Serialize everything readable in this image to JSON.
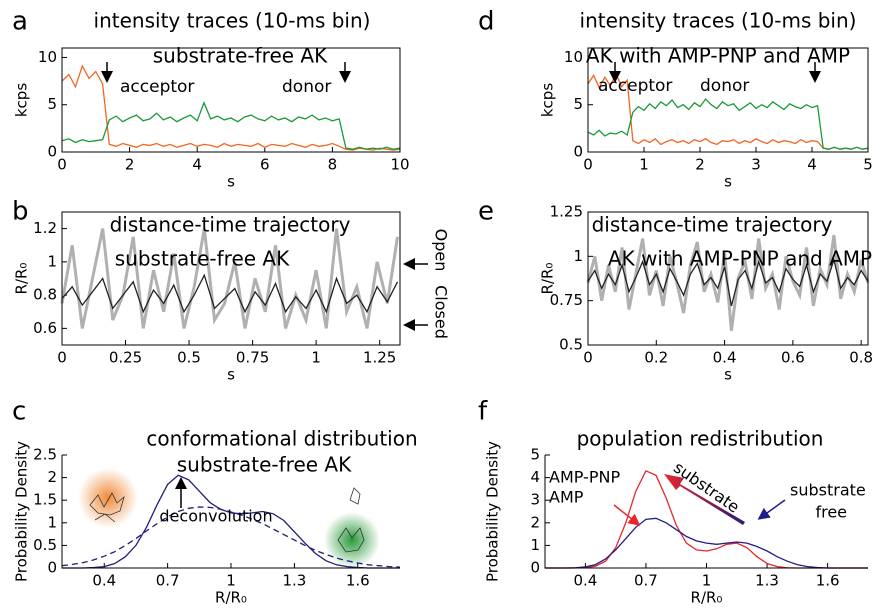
{
  "chart_data": [
    {
      "type": "line",
      "panel_label": "a",
      "title": "intensity traces (10-ms bin)",
      "subtitle": "substrate-free AK",
      "xlabel": "s",
      "ylabel": "kcps",
      "box": true,
      "xlim": [
        0,
        10
      ],
      "ylim": [
        0,
        11
      ],
      "xticks": [
        0,
        2,
        4,
        6,
        8,
        10
      ],
      "yticks": [
        0,
        5,
        10
      ],
      "x": [
        0,
        0.2,
        0.4,
        0.6,
        0.8,
        1,
        1.2,
        1.4,
        1.6,
        1.8,
        2,
        2.2,
        2.4,
        2.6,
        2.8,
        3,
        3.2,
        3.4,
        3.6,
        3.8,
        4,
        4.2,
        4.4,
        4.6,
        4.8,
        5,
        5.2,
        5.4,
        5.6,
        5.8,
        6,
        6.2,
        6.4,
        6.6,
        6.8,
        7,
        7.2,
        7.4,
        7.6,
        7.8,
        8,
        8.2,
        8.4,
        8.6,
        8.8,
        9,
        9.2,
        9.4,
        9.6,
        9.8,
        10
      ],
      "series": [
        {
          "name": "acceptor",
          "color": "#f26522",
          "values": [
            7.5,
            8.2,
            6.9,
            9.1,
            7.8,
            8.5,
            7.2,
            0.8,
            0.6,
            0.9,
            0.7,
            0.5,
            0.8,
            0.7,
            0.9,
            0.6,
            0.8,
            0.5,
            0.7,
            0.9,
            0.6,
            0.8,
            0.7,
            0.5,
            0.9,
            0.6,
            0.8,
            0.7,
            0.6,
            0.9,
            0.5,
            0.8,
            0.7,
            0.6,
            0.9,
            0.7,
            0.5,
            0.8,
            0.6,
            0.7,
            0.9,
            0.6,
            0.3,
            0.2,
            0.4,
            0.3,
            0.2,
            0.4,
            0.3,
            0.2,
            0.3
          ]
        },
        {
          "name": "donor",
          "color": "#1a9a3a",
          "values": [
            1.2,
            1.4,
            1.0,
            1.3,
            1.1,
            1.2,
            1.3,
            3.4,
            3.8,
            3.2,
            3.6,
            3.9,
            3.3,
            3.5,
            4.1,
            3.4,
            3.7,
            3.2,
            3.6,
            3.9,
            3.3,
            5.2,
            3.5,
            3.8,
            3.4,
            3.6,
            3.2,
            3.7,
            3.9,
            3.5,
            3.3,
            3.8,
            3.4,
            3.6,
            3.2,
            3.7,
            3.5,
            3.9,
            3.4,
            3.6,
            3.3,
            3.5,
            0.4,
            0.3,
            0.5,
            0.3,
            0.4,
            0.3,
            0.5,
            0.3,
            0.4
          ]
        }
      ]
    },
    {
      "type": "line",
      "panel_label": "b",
      "title": "distance-time trajectory",
      "subtitle": "substrate-free AK",
      "xlabel": "s",
      "ylabel": "R/R₀",
      "box": true,
      "xlim": [
        0,
        1.33
      ],
      "ylim": [
        0.5,
        1.3
      ],
      "xticks": [
        0,
        0.25,
        0.5,
        0.75,
        1,
        1.25
      ],
      "yticks": [
        0.6,
        0.8,
        1,
        1.2
      ],
      "x": [
        0,
        0.04,
        0.08,
        0.12,
        0.16,
        0.2,
        0.24,
        0.28,
        0.32,
        0.36,
        0.4,
        0.44,
        0.48,
        0.52,
        0.56,
        0.6,
        0.64,
        0.68,
        0.72,
        0.76,
        0.8,
        0.84,
        0.88,
        0.92,
        0.96,
        1,
        1.04,
        1.08,
        1.12,
        1.16,
        1.2,
        1.24,
        1.28,
        1.32
      ],
      "series": [
        {
          "color": "#b0b0b0",
          "values": [
            0.75,
            1.1,
            0.6,
            0.9,
            1.2,
            0.65,
            0.8,
            1.15,
            0.6,
            0.95,
            0.7,
            1.05,
            0.6,
            0.85,
            1.2,
            0.65,
            0.75,
            1.0,
            0.6,
            0.9,
            0.7,
            1.1,
            0.6,
            0.8,
            0.65,
            0.95,
            0.6,
            1.2,
            0.7,
            0.85,
            0.6,
            1.0,
            0.75,
            1.15
          ]
        },
        {
          "color": "#222222",
          "values": [
            0.78,
            0.85,
            0.74,
            0.82,
            0.9,
            0.72,
            0.8,
            0.88,
            0.7,
            0.83,
            0.75,
            0.86,
            0.7,
            0.8,
            0.92,
            0.72,
            0.78,
            0.84,
            0.7,
            0.82,
            0.74,
            0.87,
            0.7,
            0.79,
            0.72,
            0.83,
            0.7,
            0.9,
            0.75,
            0.8,
            0.7,
            0.85,
            0.76,
            0.88
          ]
        }
      ],
      "annotations": [
        {
          "text": "Open",
          "color": "#000"
        },
        {
          "text": "Closed",
          "color": "#000"
        }
      ]
    },
    {
      "type": "line",
      "panel_label": "c",
      "title": "conformational distribution",
      "subtitle": "substrate-free AK",
      "xlabel": "R/R₀",
      "ylabel": "Probability Density",
      "box": false,
      "xlim": [
        0.2,
        1.8
      ],
      "ylim": [
        0,
        2.5
      ],
      "xticks": [
        0.4,
        0.7,
        1,
        1.3,
        1.6
      ],
      "yticks": [
        0,
        0.5,
        1,
        1.5,
        2,
        2.5
      ],
      "x": [
        0.2,
        0.25,
        0.3,
        0.35,
        0.4,
        0.45,
        0.5,
        0.55,
        0.6,
        0.65,
        0.7,
        0.75,
        0.8,
        0.85,
        0.9,
        0.95,
        1,
        1.05,
        1.1,
        1.15,
        1.2,
        1.25,
        1.3,
        1.35,
        1.4,
        1.45,
        1.5,
        1.55,
        1.6,
        1.65,
        1.7,
        1.75,
        1.8
      ],
      "series": [
        {
          "color": "#1f1f7a",
          "values": [
            0,
            0,
            0,
            0.01,
            0.03,
            0.1,
            0.25,
            0.5,
            0.9,
            1.4,
            1.85,
            2.05,
            1.95,
            1.7,
            1.45,
            1.3,
            1.22,
            1.2,
            1.22,
            1.25,
            1.2,
            1.05,
            0.8,
            0.55,
            0.32,
            0.16,
            0.07,
            0.03,
            0.01,
            0,
            0,
            0,
            0
          ]
        },
        {
          "color": "#1f1f7a",
          "style": "dashed",
          "values": [
            0.05,
            0.08,
            0.12,
            0.18,
            0.26,
            0.36,
            0.5,
            0.65,
            0.82,
            0.98,
            1.13,
            1.25,
            1.32,
            1.35,
            1.34,
            1.3,
            1.24,
            1.17,
            1.08,
            0.98,
            0.86,
            0.74,
            0.62,
            0.5,
            0.39,
            0.3,
            0.22,
            0.16,
            0.11,
            0.07,
            0.05,
            0.03,
            0.02
          ]
        }
      ],
      "annotations": [
        {
          "text": "deconvolution",
          "color": "#000"
        }
      ]
    },
    {
      "type": "line",
      "panel_label": "d",
      "title": "intensity traces (10-ms bin)",
      "subtitle": "AK with AMP-PNP and AMP",
      "xlabel": "s",
      "ylabel": "kcps",
      "box": true,
      "xlim": [
        0,
        5
      ],
      "ylim": [
        0,
        11
      ],
      "xticks": [
        0,
        1,
        2,
        3,
        4,
        5
      ],
      "yticks": [
        0,
        5,
        10
      ],
      "x": [
        0,
        0.1,
        0.2,
        0.3,
        0.4,
        0.5,
        0.6,
        0.7,
        0.8,
        0.9,
        1,
        1.1,
        1.2,
        1.3,
        1.4,
        1.5,
        1.6,
        1.7,
        1.8,
        1.9,
        2,
        2.1,
        2.2,
        2.3,
        2.4,
        2.5,
        2.6,
        2.7,
        2.8,
        2.9,
        3,
        3.1,
        3.2,
        3.3,
        3.4,
        3.5,
        3.6,
        3.7,
        3.8,
        3.9,
        4,
        4.1,
        4.2,
        4.3,
        4.4,
        4.5,
        4.6,
        4.7,
        4.8,
        4.9,
        5
      ],
      "series": [
        {
          "name": "acceptor",
          "color": "#f26522",
          "values": [
            7.2,
            8.1,
            6.8,
            7.9,
            7.0,
            8.3,
            6.9,
            7.6,
            1.2,
            0.9,
            1.3,
            1.0,
            1.4,
            0.8,
            1.1,
            1.3,
            1.0,
            1.2,
            0.9,
            1.3,
            1.1,
            1.4,
            1.0,
            0.8,
            1.2,
            1.1,
            1.3,
            0.9,
            1.2,
            1.0,
            1.4,
            1.1,
            0.9,
            1.3,
            1.0,
            1.2,
            1.1,
            0.9,
            1.3,
            1.0,
            1.2,
            1.1,
            0.4,
            0.3,
            0.5,
            0.3,
            0.4,
            0.3,
            0.5,
            0.3,
            0.4
          ]
        },
        {
          "name": "donor",
          "color": "#1a9a3a",
          "values": [
            2.1,
            1.8,
            2.3,
            1.7,
            2.0,
            1.9,
            2.2,
            1.8,
            4.2,
            4.8,
            4.4,
            5.1,
            4.6,
            5.3,
            4.9,
            5.5,
            4.7,
            5.0,
            4.5,
            5.2,
            4.8,
            5.6,
            5.0,
            4.6,
            5.3,
            4.9,
            5.1,
            4.4,
            4.8,
            5.2,
            4.6,
            5.0,
            4.7,
            5.3,
            4.9,
            4.5,
            5.1,
            4.8,
            4.6,
            5.0,
            4.7,
            4.9,
            0.4,
            0.3,
            0.5,
            0.3,
            0.4,
            0.3,
            0.5,
            0.3,
            0.4
          ]
        }
      ]
    },
    {
      "type": "line",
      "panel_label": "e",
      "title": "distance-time trajectory",
      "subtitle": "AK with AMP-PNP and AMP",
      "xlabel": "s",
      "ylabel": "R/R₀",
      "box": true,
      "xlim": [
        0,
        0.82
      ],
      "ylim": [
        0.5,
        1.25
      ],
      "xticks": [
        0,
        0.2,
        0.4,
        0.6,
        0.8
      ],
      "yticks": [
        0.5,
        0.75,
        1,
        1.25
      ],
      "x": [
        0,
        0.02,
        0.04,
        0.06,
        0.08,
        0.1,
        0.12,
        0.14,
        0.16,
        0.18,
        0.2,
        0.22,
        0.24,
        0.26,
        0.28,
        0.3,
        0.32,
        0.34,
        0.36,
        0.38,
        0.4,
        0.42,
        0.44,
        0.46,
        0.48,
        0.5,
        0.52,
        0.54,
        0.56,
        0.58,
        0.6,
        0.62,
        0.64,
        0.66,
        0.68,
        0.7,
        0.72,
        0.74,
        0.76,
        0.78,
        0.8,
        0.82
      ],
      "series": [
        {
          "color": "#b0b0b0",
          "values": [
            0.85,
            1.0,
            0.75,
            0.95,
            0.8,
            1.05,
            0.7,
            0.9,
            1.1,
            0.78,
            0.92,
            0.72,
            1.0,
            0.85,
            0.68,
            0.95,
            1.08,
            0.8,
            0.9,
            0.74,
            1.02,
            0.58,
            0.88,
            0.97,
            0.76,
            1.1,
            0.82,
            0.9,
            0.7,
            1.0,
            0.86,
            0.78,
            1.05,
            0.72,
            0.93,
            0.84,
            1.12,
            0.76,
            0.9,
            0.8,
            0.98,
            0.85
          ]
        },
        {
          "color": "#222222",
          "values": [
            0.86,
            0.92,
            0.82,
            0.9,
            0.84,
            0.95,
            0.8,
            0.88,
            0.97,
            0.84,
            0.9,
            0.8,
            0.93,
            0.86,
            0.78,
            0.9,
            0.96,
            0.84,
            0.88,
            0.82,
            0.94,
            0.72,
            0.87,
            0.92,
            0.82,
            0.97,
            0.85,
            0.88,
            0.8,
            0.93,
            0.87,
            0.83,
            0.95,
            0.8,
            0.9,
            0.86,
            0.98,
            0.82,
            0.88,
            0.84,
            0.92,
            0.86
          ]
        }
      ]
    },
    {
      "type": "line",
      "panel_label": "f",
      "title": "population redistribution",
      "xlabel": "R/R₀",
      "ylabel": "Probability Density",
      "box": false,
      "xlim": [
        0.2,
        1.8
      ],
      "ylim": [
        0,
        5
      ],
      "xticks": [
        0.4,
        0.7,
        1,
        1.3,
        1.6
      ],
      "yticks": [
        0,
        1,
        2,
        3,
        4,
        5
      ],
      "x": [
        0.2,
        0.25,
        0.3,
        0.35,
        0.4,
        0.45,
        0.5,
        0.55,
        0.6,
        0.65,
        0.7,
        0.75,
        0.8,
        0.85,
        0.9,
        0.95,
        1,
        1.05,
        1.1,
        1.15,
        1.2,
        1.25,
        1.3,
        1.35,
        1.4,
        1.45,
        1.5,
        1.55,
        1.6,
        1.65,
        1.7,
        1.75,
        1.8
      ],
      "series": [
        {
          "color": "#e8262b",
          "values": [
            0,
            0,
            0,
            0,
            0.02,
            0.08,
            0.3,
            0.9,
            2.0,
            3.4,
            4.3,
            4.1,
            3.1,
            1.9,
            1.1,
            0.8,
            0.75,
            0.85,
            1.05,
            1.1,
            0.9,
            0.5,
            0.2,
            0.06,
            0.01,
            0,
            0,
            0,
            0,
            0,
            0,
            0,
            0
          ]
        },
        {
          "color": "#1f1f8a",
          "values": [
            0,
            0,
            0,
            0.01,
            0.05,
            0.15,
            0.4,
            0.8,
            1.3,
            1.8,
            2.15,
            2.2,
            2.0,
            1.7,
            1.4,
            1.2,
            1.1,
            1.05,
            1.1,
            1.15,
            1.1,
            0.95,
            0.75,
            0.5,
            0.3,
            0.15,
            0.06,
            0.02,
            0,
            0,
            0,
            0,
            0
          ]
        }
      ],
      "annotations": [
        {
          "text": "AMP-PNP",
          "color": "#e8262b"
        },
        {
          "text": "AMP",
          "color": "#e8262b"
        },
        {
          "text": "substrate",
          "color": "#000"
        },
        {
          "text": "substrate",
          "color": "#1f1f8a"
        },
        {
          "text": "free",
          "color": "#1f1f8a"
        }
      ]
    }
  ]
}
